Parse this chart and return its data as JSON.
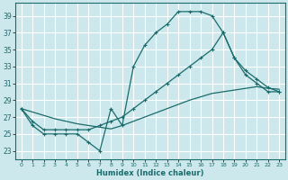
{
  "xlabel": "Humidex (Indice chaleur)",
  "bg_color": "#cce8ec",
  "grid_color": "#ffffff",
  "line_color": "#1a6b6b",
  "xlim": [
    -0.5,
    23.5
  ],
  "ylim": [
    22.0,
    40.5
  ],
  "yticks": [
    23,
    25,
    27,
    29,
    31,
    33,
    35,
    37,
    39
  ],
  "xticks": [
    0,
    1,
    2,
    3,
    4,
    5,
    6,
    7,
    8,
    9,
    10,
    11,
    12,
    13,
    14,
    15,
    16,
    17,
    18,
    19,
    20,
    21,
    22,
    23
  ],
  "series1_x": [
    0,
    1,
    2,
    3,
    4,
    5,
    6,
    7,
    8,
    9,
    10,
    11,
    12,
    13,
    14,
    15,
    16,
    17,
    18,
    19,
    20,
    21,
    22,
    23
  ],
  "series1_y": [
    28,
    26,
    25,
    25,
    25,
    25,
    24,
    23,
    28,
    26,
    33,
    35.5,
    37,
    38,
    39.5,
    39.5,
    39.5,
    39,
    37,
    34,
    32,
    31,
    30,
    30
  ],
  "series2_x": [
    0,
    1,
    2,
    3,
    4,
    5,
    6,
    7,
    8,
    9,
    10,
    11,
    12,
    13,
    14,
    15,
    16,
    17,
    18,
    19,
    20,
    21,
    22,
    23
  ],
  "series2_y": [
    28,
    26.5,
    25.5,
    25.5,
    25.5,
    25.5,
    25.5,
    26,
    26.5,
    27,
    28,
    29,
    30,
    31,
    32,
    33,
    34,
    35,
    37,
    34,
    32.5,
    31.5,
    30.5,
    30
  ],
  "series3_x": [
    0,
    1,
    2,
    3,
    4,
    5,
    6,
    7,
    8,
    9,
    10,
    11,
    12,
    13,
    14,
    15,
    16,
    17,
    18,
    19,
    20,
    21,
    22,
    23
  ],
  "series3_y": [
    28,
    27.6,
    27.2,
    26.8,
    26.5,
    26.2,
    26.0,
    25.8,
    25.6,
    26.0,
    26.5,
    27.0,
    27.5,
    28.0,
    28.5,
    29.0,
    29.4,
    29.8,
    30.0,
    30.2,
    30.4,
    30.6,
    30.4,
    30.3
  ]
}
